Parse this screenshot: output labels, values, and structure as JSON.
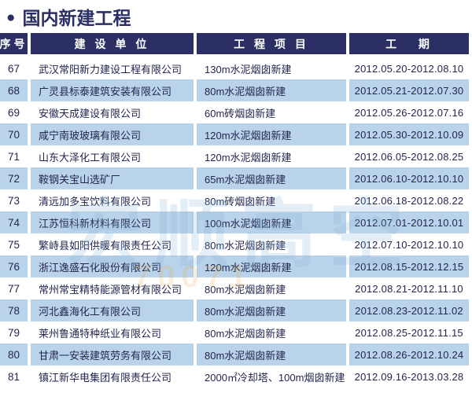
{
  "title": {
    "bullet": "●",
    "text": "国内新建工程"
  },
  "colors": {
    "header_navy": "#2b2f63",
    "row_blue": "#b9d3ea",
    "text_navy": "#23264f"
  },
  "watermark": {
    "text": "宏顺高空",
    "digits": "70071"
  },
  "table": {
    "headers": [
      "序号",
      "建 设 单 位",
      "工 程 项 目",
      "工   期"
    ],
    "rows": [
      {
        "no": "67",
        "company": "武汉常阳新力建设工程有限公司",
        "project": "130m水泥烟囱新建",
        "period": "2012.05.20-2012.08.10"
      },
      {
        "no": "68",
        "company": "广灵县标泰建筑安装有限公司",
        "project": "80m水泥烟囱新建",
        "period": "2012.05.21-2012.07.30"
      },
      {
        "no": "69",
        "company": "安徽天成建设有限公司",
        "project": "60m砖烟囱新建",
        "period": "2012.05.26-2012.07.16"
      },
      {
        "no": "70",
        "company": "咸宁南玻玻璃有限公司",
        "project": "120m水泥烟囱新建",
        "period": "2012.05.30-2012.10.09"
      },
      {
        "no": "71",
        "company": "山东大泽化工有限公司",
        "project": "120m水泥烟囱新建",
        "period": "2012.06.05-2012.08.25"
      },
      {
        "no": "72",
        "company": "鞍钢关宝山选矿厂",
        "project": "65m水泥烟囱新建",
        "period": "2012.06.10-2012.10.10"
      },
      {
        "no": "73",
        "company": "清远加多宝饮料有限公司",
        "project": "80m砖烟囱新建",
        "period": "2012.06.18-2012.08.22"
      },
      {
        "no": "74",
        "company": "江苏恒科新材料有限公司",
        "project": "100m水泥烟囱新建",
        "period": "2012.07.01-2012.10.01"
      },
      {
        "no": "75",
        "company": "繁峙县如阳供暖有限责任公司",
        "project": "80m水泥烟囱新建",
        "period": "2012.07.10-2012.10.10"
      },
      {
        "no": "76",
        "company": "浙江逸盛石化股份有限公司",
        "project": "120m水泥烟囱新建",
        "period": "2012.08.15-2012.12.15"
      },
      {
        "no": "77",
        "company": "常州常宝精特能源管材有限公司",
        "project": "80m水泥烟囱新建",
        "period": "2012.08.21-2012.11.10"
      },
      {
        "no": "78",
        "company": "河北鑫海化工有限公司",
        "project": "80m水泥烟囱新建",
        "period": "2012.08.23-2012.11.02"
      },
      {
        "no": "79",
        "company": "莱州鲁通特种纸业有限公司",
        "project": "80m水泥烟囱新建",
        "period": "2012.08.25-2012.11.15"
      },
      {
        "no": "80",
        "company": "甘肃一安装建筑劳务有限公司",
        "project": "80m水泥烟囱新建",
        "period": "2012.08.26-2012.10.24"
      },
      {
        "no": "81",
        "company": "镇江新华电集团有限责任公司",
        "project": "2000㎡冷却塔、100m烟囱新建",
        "period": "2012.09.16-2013.03.28"
      }
    ]
  }
}
